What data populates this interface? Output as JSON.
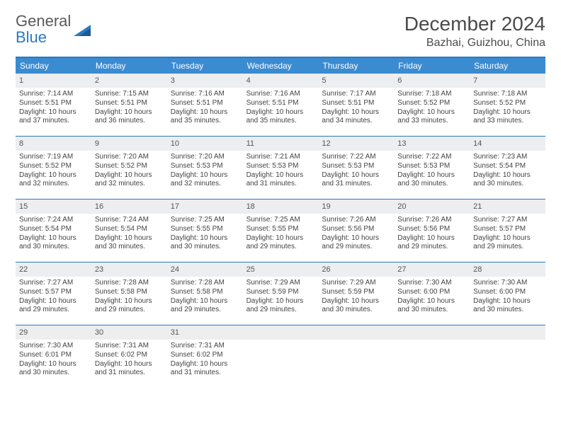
{
  "logo": {
    "line1": "General",
    "line2": "Blue"
  },
  "title": "December 2024",
  "location": "Bazhai, Guizhou, China",
  "colors": {
    "header_bg": "#3b8bd1",
    "rule": "#2a7ac0",
    "numrow_bg": "#eceef0",
    "text": "#444444"
  },
  "dow": [
    "Sunday",
    "Monday",
    "Tuesday",
    "Wednesday",
    "Thursday",
    "Friday",
    "Saturday"
  ],
  "weeks": [
    [
      {
        "n": "1",
        "sr": "7:14 AM",
        "ss": "5:51 PM",
        "dl": "10 hours and 37 minutes."
      },
      {
        "n": "2",
        "sr": "7:15 AM",
        "ss": "5:51 PM",
        "dl": "10 hours and 36 minutes."
      },
      {
        "n": "3",
        "sr": "7:16 AM",
        "ss": "5:51 PM",
        "dl": "10 hours and 35 minutes."
      },
      {
        "n": "4",
        "sr": "7:16 AM",
        "ss": "5:51 PM",
        "dl": "10 hours and 35 minutes."
      },
      {
        "n": "5",
        "sr": "7:17 AM",
        "ss": "5:51 PM",
        "dl": "10 hours and 34 minutes."
      },
      {
        "n": "6",
        "sr": "7:18 AM",
        "ss": "5:52 PM",
        "dl": "10 hours and 33 minutes."
      },
      {
        "n": "7",
        "sr": "7:18 AM",
        "ss": "5:52 PM",
        "dl": "10 hours and 33 minutes."
      }
    ],
    [
      {
        "n": "8",
        "sr": "7:19 AM",
        "ss": "5:52 PM",
        "dl": "10 hours and 32 minutes."
      },
      {
        "n": "9",
        "sr": "7:20 AM",
        "ss": "5:52 PM",
        "dl": "10 hours and 32 minutes."
      },
      {
        "n": "10",
        "sr": "7:20 AM",
        "ss": "5:53 PM",
        "dl": "10 hours and 32 minutes."
      },
      {
        "n": "11",
        "sr": "7:21 AM",
        "ss": "5:53 PM",
        "dl": "10 hours and 31 minutes."
      },
      {
        "n": "12",
        "sr": "7:22 AM",
        "ss": "5:53 PM",
        "dl": "10 hours and 31 minutes."
      },
      {
        "n": "13",
        "sr": "7:22 AM",
        "ss": "5:53 PM",
        "dl": "10 hours and 30 minutes."
      },
      {
        "n": "14",
        "sr": "7:23 AM",
        "ss": "5:54 PM",
        "dl": "10 hours and 30 minutes."
      }
    ],
    [
      {
        "n": "15",
        "sr": "7:24 AM",
        "ss": "5:54 PM",
        "dl": "10 hours and 30 minutes."
      },
      {
        "n": "16",
        "sr": "7:24 AM",
        "ss": "5:54 PM",
        "dl": "10 hours and 30 minutes."
      },
      {
        "n": "17",
        "sr": "7:25 AM",
        "ss": "5:55 PM",
        "dl": "10 hours and 30 minutes."
      },
      {
        "n": "18",
        "sr": "7:25 AM",
        "ss": "5:55 PM",
        "dl": "10 hours and 29 minutes."
      },
      {
        "n": "19",
        "sr": "7:26 AM",
        "ss": "5:56 PM",
        "dl": "10 hours and 29 minutes."
      },
      {
        "n": "20",
        "sr": "7:26 AM",
        "ss": "5:56 PM",
        "dl": "10 hours and 29 minutes."
      },
      {
        "n": "21",
        "sr": "7:27 AM",
        "ss": "5:57 PM",
        "dl": "10 hours and 29 minutes."
      }
    ],
    [
      {
        "n": "22",
        "sr": "7:27 AM",
        "ss": "5:57 PM",
        "dl": "10 hours and 29 minutes."
      },
      {
        "n": "23",
        "sr": "7:28 AM",
        "ss": "5:58 PM",
        "dl": "10 hours and 29 minutes."
      },
      {
        "n": "24",
        "sr": "7:28 AM",
        "ss": "5:58 PM",
        "dl": "10 hours and 29 minutes."
      },
      {
        "n": "25",
        "sr": "7:29 AM",
        "ss": "5:59 PM",
        "dl": "10 hours and 29 minutes."
      },
      {
        "n": "26",
        "sr": "7:29 AM",
        "ss": "5:59 PM",
        "dl": "10 hours and 30 minutes."
      },
      {
        "n": "27",
        "sr": "7:30 AM",
        "ss": "6:00 PM",
        "dl": "10 hours and 30 minutes."
      },
      {
        "n": "28",
        "sr": "7:30 AM",
        "ss": "6:00 PM",
        "dl": "10 hours and 30 minutes."
      }
    ],
    [
      {
        "n": "29",
        "sr": "7:30 AM",
        "ss": "6:01 PM",
        "dl": "10 hours and 30 minutes."
      },
      {
        "n": "30",
        "sr": "7:31 AM",
        "ss": "6:02 PM",
        "dl": "10 hours and 31 minutes."
      },
      {
        "n": "31",
        "sr": "7:31 AM",
        "ss": "6:02 PM",
        "dl": "10 hours and 31 minutes."
      },
      null,
      null,
      null,
      null
    ]
  ],
  "labels": {
    "sunrise": "Sunrise:",
    "sunset": "Sunset:",
    "daylight": "Daylight:"
  }
}
